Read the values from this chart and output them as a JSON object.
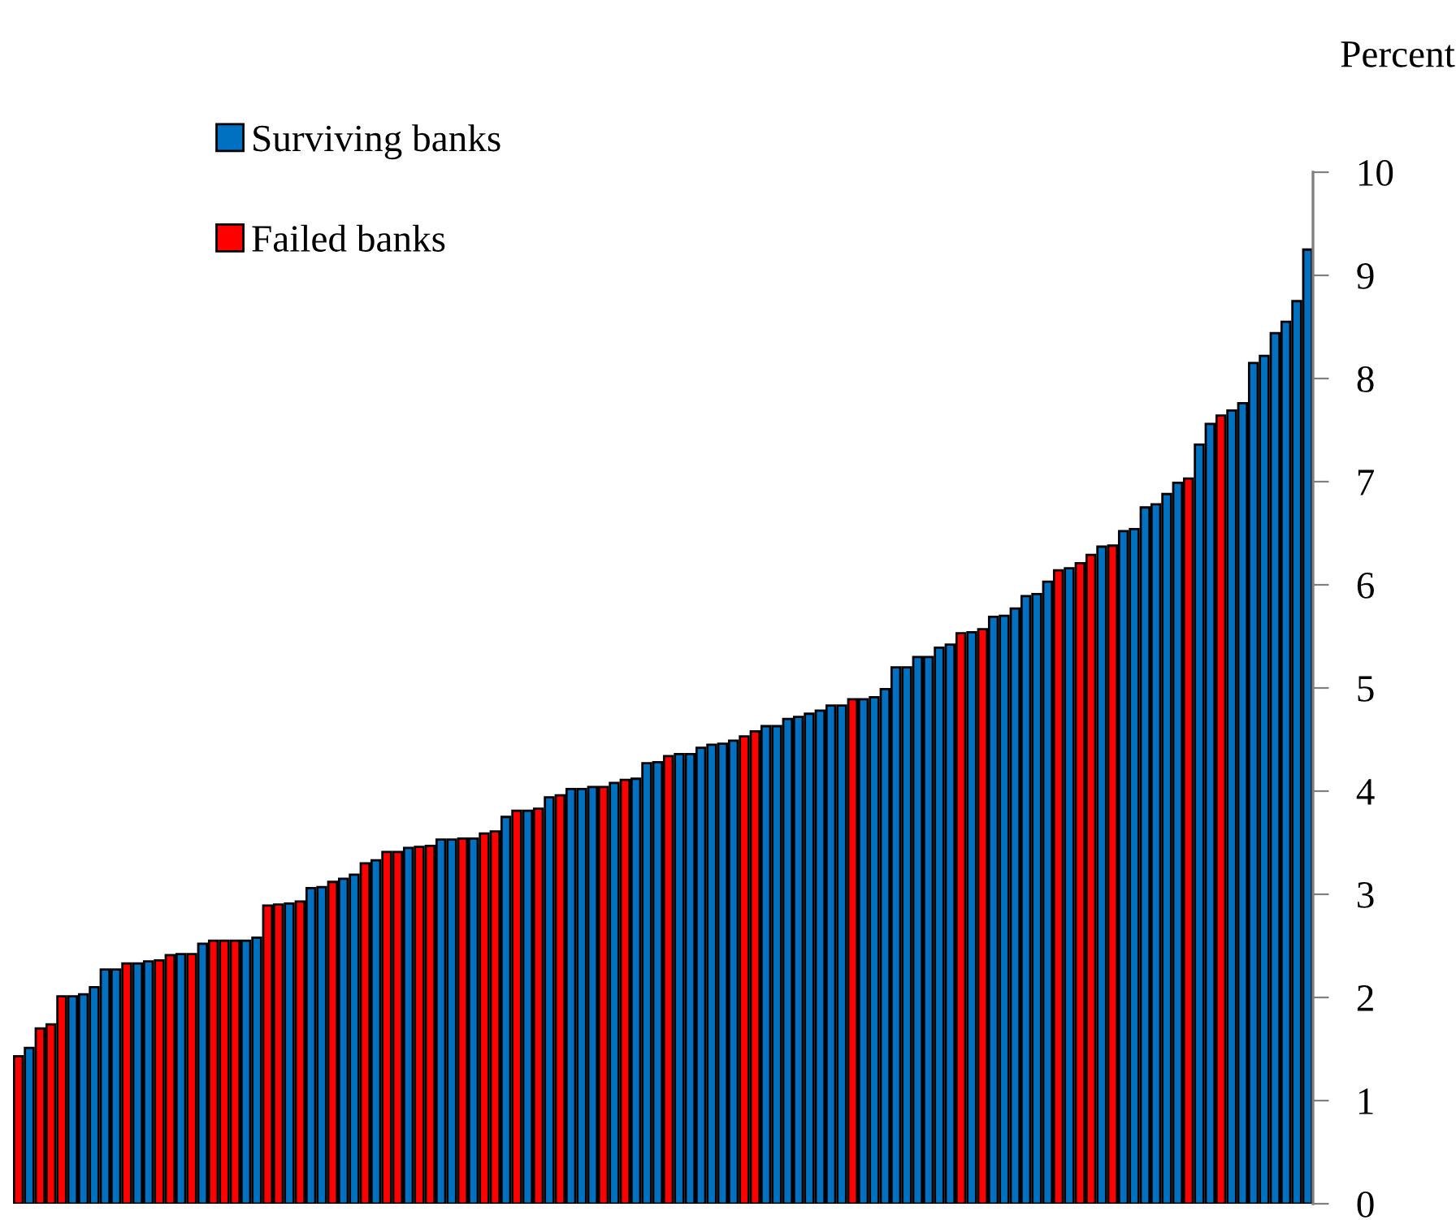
{
  "chart_data": {
    "type": "bar",
    "ylabel": "Percent",
    "stacked": true,
    "categories": [
      null,
      null,
      null,
      null,
      null,
      null,
      null,
      null,
      null,
      null,
      null,
      null,
      null,
      null,
      null,
      null,
      null,
      null,
      null,
      null,
      null,
      null,
      null,
      null,
      null,
      null,
      null,
      null,
      null,
      null,
      null,
      null,
      null,
      null,
      null,
      null,
      null,
      null,
      null,
      null,
      null,
      null,
      null,
      null,
      null,
      null,
      null,
      null,
      null,
      null,
      null,
      null,
      null,
      null,
      null,
      null,
      null,
      null,
      null,
      null,
      null,
      null,
      null,
      null,
      null,
      null,
      null,
      null,
      null,
      null,
      null,
      null,
      null,
      null,
      null,
      null,
      null,
      null,
      null,
      null,
      null,
      null,
      null,
      null,
      null,
      null,
      null,
      null,
      null,
      null,
      null,
      null,
      null,
      null,
      null,
      null,
      null,
      null,
      null,
      null,
      null,
      null,
      null,
      null,
      null,
      null,
      null,
      null,
      null,
      null,
      null,
      null,
      null,
      null,
      null,
      null,
      null,
      null,
      null,
      null
    ],
    "series": [
      {
        "name": "Surviving banks",
        "color": "#0070c0",
        "values": [
          null,
          1.51,
          null,
          null,
          null,
          2.01,
          2.03,
          2.1,
          2.27,
          2.27,
          null,
          2.33,
          2.35,
          null,
          null,
          2.42,
          null,
          2.52,
          null,
          null,
          null,
          2.55,
          2.58,
          null,
          null,
          2.91,
          null,
          3.06,
          3.07,
          null,
          3.15,
          3.19,
          null,
          3.33,
          null,
          null,
          3.45,
          null,
          null,
          3.53,
          3.53,
          null,
          3.54,
          null,
          null,
          3.75,
          null,
          3.81,
          null,
          3.94,
          null,
          4.02,
          4.02,
          4.04,
          null,
          4.08,
          null,
          4.12,
          4.27,
          4.28,
          null,
          4.36,
          4.36,
          4.42,
          4.45,
          4.46,
          4.49,
          null,
          null,
          4.63,
          4.63,
          4.7,
          4.72,
          4.75,
          4.78,
          4.83,
          4.83,
          null,
          4.89,
          4.91,
          4.99,
          5.2,
          5.2,
          5.3,
          5.3,
          5.39,
          5.42,
          null,
          5.54,
          null,
          5.69,
          5.7,
          5.77,
          5.89,
          5.91,
          6.03,
          null,
          6.16,
          null,
          null,
          6.37,
          null,
          6.52,
          6.54,
          6.75,
          6.78,
          6.88,
          6.99,
          null,
          7.36,
          7.56,
          null,
          7.69,
          7.76,
          8.15,
          8.22,
          8.44,
          8.55,
          8.75,
          9.25
        ]
      },
      {
        "name": "Failed banks",
        "color": "#ff0000",
        "values": [
          1.43,
          null,
          1.7,
          1.74,
          2.01,
          null,
          null,
          null,
          null,
          null,
          2.33,
          null,
          null,
          2.36,
          2.41,
          null,
          2.42,
          null,
          2.55,
          2.55,
          2.55,
          null,
          null,
          2.89,
          2.9,
          null,
          2.93,
          null,
          null,
          3.12,
          null,
          null,
          3.3,
          null,
          3.41,
          3.41,
          null,
          3.46,
          3.47,
          null,
          null,
          3.54,
          null,
          3.59,
          3.61,
          null,
          3.81,
          null,
          3.83,
          null,
          3.96,
          null,
          null,
          null,
          4.04,
          null,
          4.11,
          null,
          null,
          null,
          4.34,
          null,
          null,
          null,
          null,
          null,
          null,
          4.53,
          4.58,
          null,
          null,
          null,
          null,
          null,
          null,
          null,
          null,
          4.89,
          null,
          null,
          null,
          null,
          null,
          null,
          null,
          null,
          null,
          5.53,
          null,
          5.57,
          null,
          null,
          null,
          null,
          null,
          null,
          6.14,
          null,
          6.21,
          6.29,
          null,
          6.38,
          null,
          null,
          null,
          null,
          null,
          null,
          7.03,
          null,
          null,
          7.64,
          null,
          null,
          null,
          null,
          null,
          null,
          null,
          null
        ]
      }
    ],
    "ylim": [
      0,
      10
    ],
    "yticks": [
      0,
      1,
      2,
      3,
      4,
      5,
      6,
      7,
      8,
      9,
      10
    ],
    "legend": "top left",
    "grid": false,
    "tick_labels": "y"
  }
}
